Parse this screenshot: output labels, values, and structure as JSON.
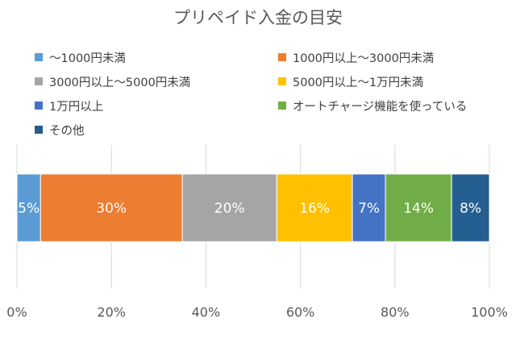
{
  "chart_data": {
    "type": "bar",
    "orientation": "horizontal-stacked-100",
    "title": "プリペイド入金の目安",
    "categories": [
      ""
    ],
    "series": [
      {
        "name": "～1000円未満",
        "values": [
          5
        ],
        "label": "5%",
        "color": "#5B9BD5"
      },
      {
        "name": "1000円以上～3000円未満",
        "values": [
          30
        ],
        "label": "30%",
        "color": "#ED7D31"
      },
      {
        "name": "3000円以上～5000円未満",
        "values": [
          20
        ],
        "label": "20%",
        "color": "#A5A5A5"
      },
      {
        "name": "5000円以上～1万円未満",
        "values": [
          16
        ],
        "label": "16%",
        "color": "#FFC000"
      },
      {
        "name": "1万円以上",
        "values": [
          7
        ],
        "label": "7%",
        "color": "#4472C4"
      },
      {
        "name": "オートチャージ機能を使っている",
        "values": [
          14
        ],
        "label": "14%",
        "color": "#70AD47"
      },
      {
        "name": "その他",
        "values": [
          8
        ],
        "label": "8%",
        "color": "#255E91"
      }
    ],
    "xlim": [
      0,
      100
    ],
    "xticks": [
      "0%",
      "20%",
      "40%",
      "60%",
      "80%",
      "100%"
    ],
    "grid": true,
    "legend": "top"
  }
}
